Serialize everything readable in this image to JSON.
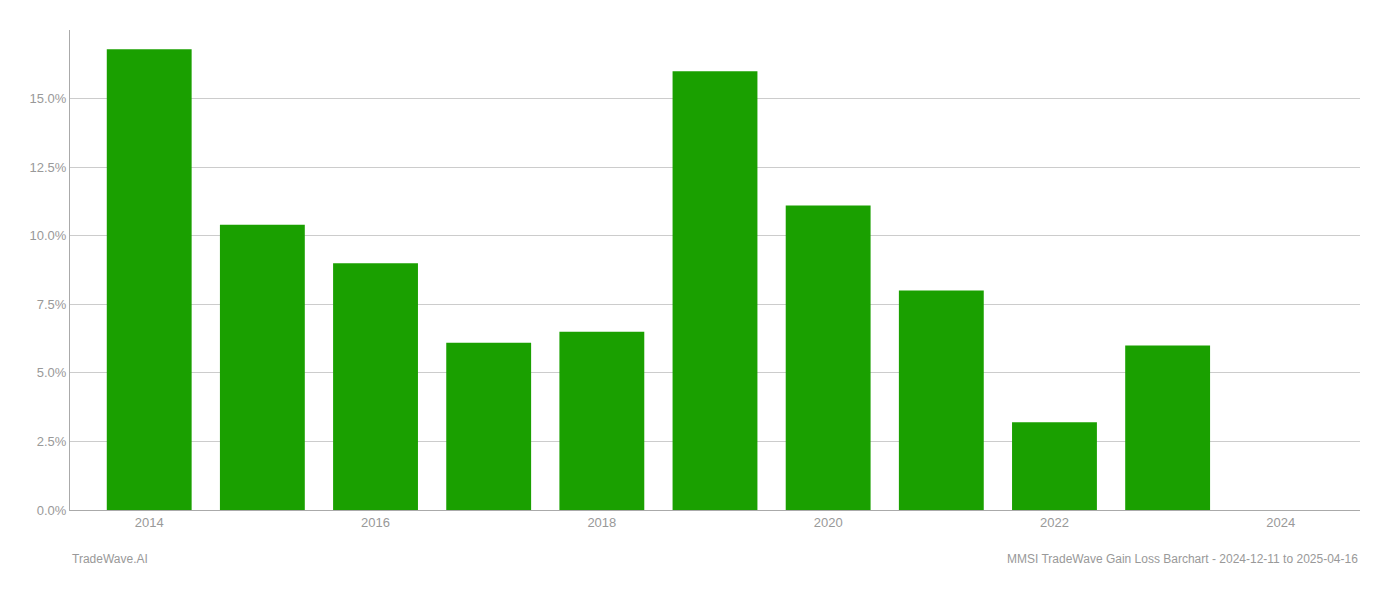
{
  "chart_data": {
    "type": "bar",
    "x": [
      2014,
      2015,
      2016,
      2017,
      2018,
      2019,
      2020,
      2021,
      2022,
      2023
    ],
    "values": [
      0.168,
      0.104,
      0.09,
      0.061,
      0.065,
      0.16,
      0.111,
      0.08,
      0.032,
      0.06
    ],
    "color": "#1aa000",
    "xlim": [
      2013.3,
      2024.7
    ],
    "xticks": [
      2014,
      2016,
      2018,
      2020,
      2022,
      2024
    ],
    "ylim": [
      0,
      0.175
    ],
    "yticks": [
      {
        "value": 0.0,
        "label": "0.0%"
      },
      {
        "value": 0.025,
        "label": "2.5%"
      },
      {
        "value": 0.05,
        "label": "5.0%"
      },
      {
        "value": 0.075,
        "label": "7.5%"
      },
      {
        "value": 0.1,
        "label": "10.0%"
      },
      {
        "value": 0.125,
        "label": "12.5%"
      },
      {
        "value": 0.15,
        "label": "15.0%"
      }
    ],
    "grid": true,
    "annotations": [
      "TradeWave.AI",
      "MMSI TradeWave Gain Loss Barchart - 2024-12-11 to 2025-04-16"
    ]
  }
}
